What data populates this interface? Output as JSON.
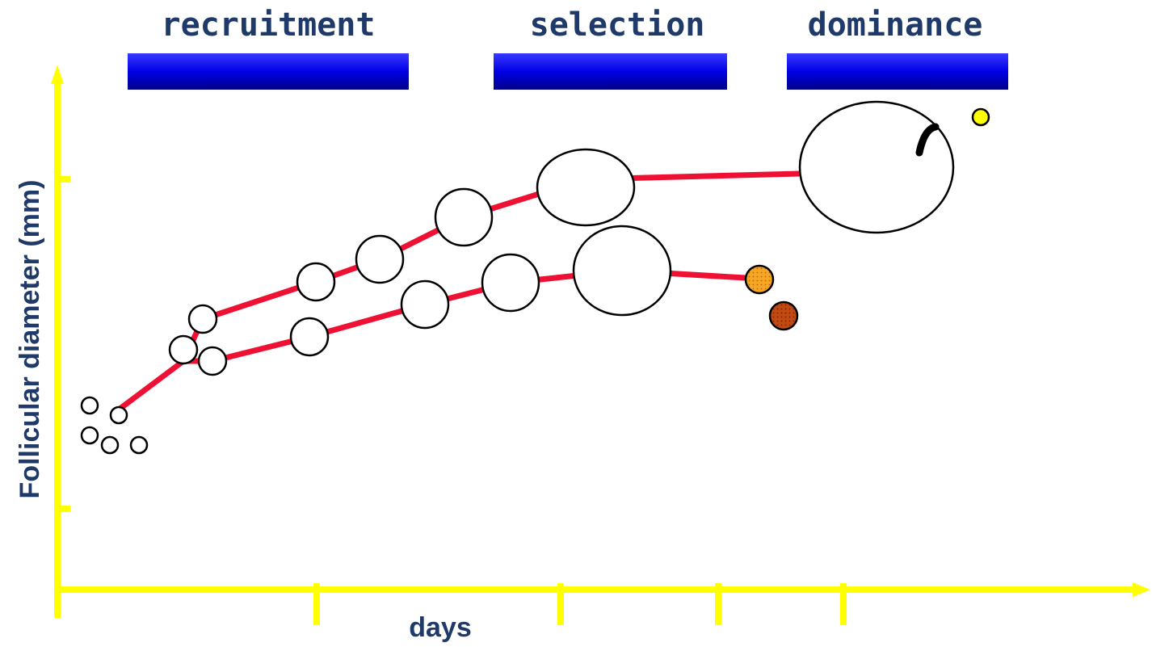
{
  "phases": [
    {
      "label": "recruitment"
    },
    {
      "label": "selection"
    },
    {
      "label": "dominance"
    }
  ],
  "axes": {
    "x_label": "days",
    "y_label": "Follicular diameter (mm)"
  },
  "colors": {
    "axis": "#ffff00",
    "phase_bar": "#0000e0",
    "growth_line": "#ee1133",
    "label_text": "#1f3a68",
    "ovulation_marker": "#ffff00",
    "atretic_orange": "#f0a020",
    "atretic_brown": "#b83a10"
  }
}
